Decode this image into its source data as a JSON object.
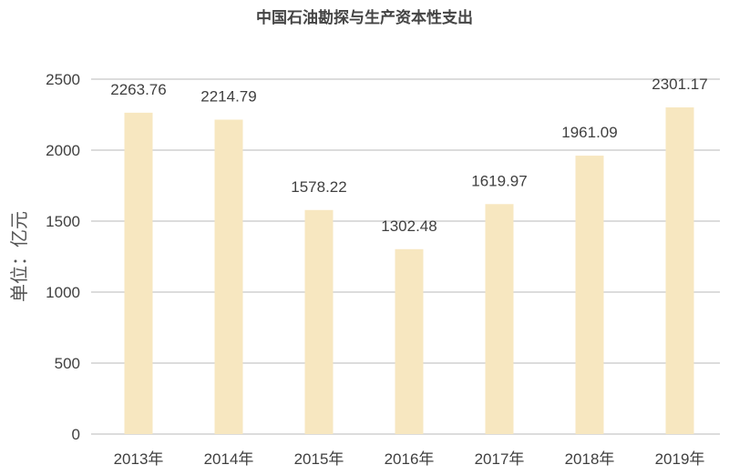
{
  "chart_data": {
    "type": "bar",
    "title": "中国石油勘探与生产资本性支出",
    "ylabel": "单位：亿元",
    "xlabel": "",
    "categories": [
      "2013年",
      "2014年",
      "2015年",
      "2016年",
      "2017年",
      "2018年",
      "2019年"
    ],
    "values": [
      2263.76,
      2214.79,
      1578.22,
      1302.48,
      1619.97,
      1961.09,
      2301.17
    ],
    "data_labels": [
      "2263.76",
      "2214.79",
      "1578.22",
      "1302.48",
      "1619.97",
      "1961.09",
      "2301.17"
    ],
    "ylim": [
      0,
      2500
    ],
    "yticks": [
      "0",
      "500",
      "1000",
      "1500",
      "2000",
      "2500"
    ],
    "grid": true,
    "legend": "none",
    "colors": {
      "bar": "#f7e7c0",
      "grid": "#d0d0d0",
      "text": "#404040"
    }
  }
}
